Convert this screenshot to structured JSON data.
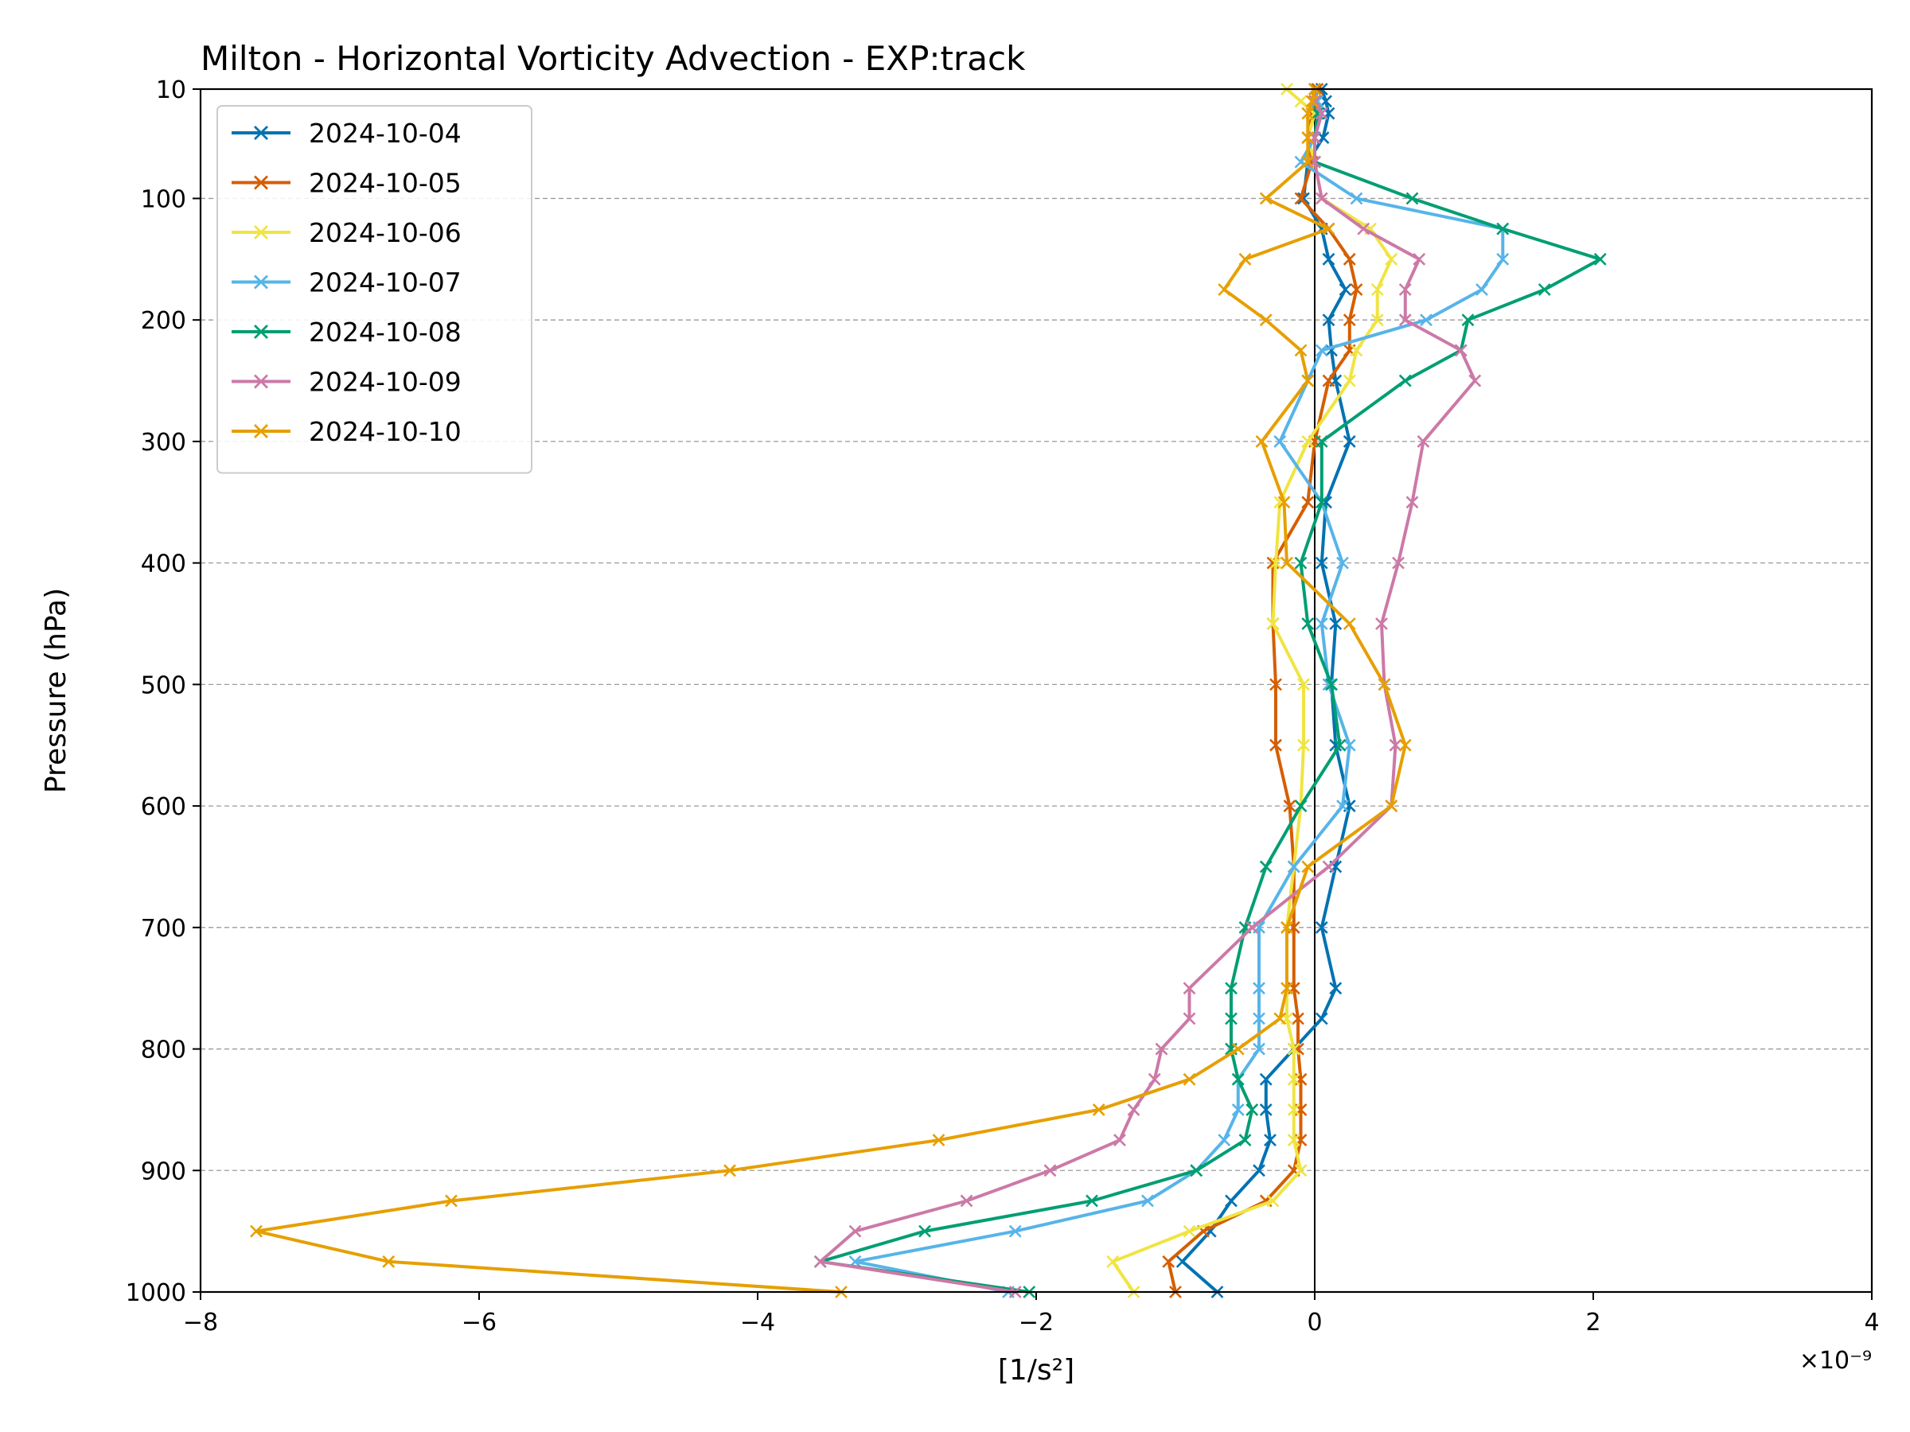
{
  "chart_data": {
    "type": "line",
    "title": "Milton - Horizontal Vorticity Advection - EXP:track",
    "xlabel": "[1/s²]",
    "ylabel": "Pressure (hPa)",
    "x_multiplier": "×10⁻⁹",
    "xlim": [
      -8,
      4
    ],
    "ylim": [
      1000,
      10
    ],
    "xticks": [
      -8,
      -6,
      -4,
      -2,
      0,
      2,
      4
    ],
    "xtick_labels": [
      "−8",
      "−6",
      "−4",
      "−2",
      "0",
      "2",
      "4"
    ],
    "yticks": [
      10,
      100,
      200,
      300,
      400,
      500,
      600,
      700,
      800,
      900,
      1000
    ],
    "ytick_labels": [
      "10",
      "100",
      "200",
      "300",
      "400",
      "500",
      "600",
      "700",
      "800",
      "900",
      "1000"
    ],
    "grid": "horizontal dashed",
    "legend_position": "top-left",
    "levels": [
      10,
      20,
      30,
      50,
      70,
      100,
      125,
      150,
      175,
      200,
      225,
      250,
      300,
      350,
      400,
      450,
      500,
      550,
      600,
      650,
      700,
      750,
      775,
      800,
      825,
      850,
      875,
      900,
      925,
      950,
      975,
      1000
    ],
    "series": [
      {
        "name": "2024-10-04",
        "color": "#0072b2",
        "values": [
          0.05,
          0.08,
          0.1,
          0.06,
          -0.05,
          -0.08,
          0.05,
          0.1,
          0.22,
          0.1,
          0.12,
          0.15,
          0.25,
          0.08,
          0.05,
          0.15,
          0.12,
          0.15,
          0.25,
          0.15,
          0.05,
          0.15,
          0.05,
          -0.15,
          -0.35,
          -0.35,
          -0.32,
          -0.4,
          -0.6,
          -0.75,
          -0.95,
          -0.7
        ]
      },
      {
        "name": "2024-10-05",
        "color": "#d55e00",
        "values": [
          0.02,
          0.0,
          -0.02,
          -0.05,
          -0.02,
          -0.1,
          0.1,
          0.25,
          0.3,
          0.25,
          0.25,
          0.1,
          0.0,
          -0.05,
          -0.3,
          -0.3,
          -0.28,
          -0.28,
          -0.18,
          -0.15,
          -0.15,
          -0.15,
          -0.12,
          -0.12,
          -0.1,
          -0.1,
          -0.1,
          -0.15,
          -0.35,
          -0.8,
          -1.05,
          -1.0
        ]
      },
      {
        "name": "2024-10-06",
        "color": "#f0e442",
        "values": [
          -0.2,
          -0.1,
          0.0,
          -0.05,
          0.0,
          0.05,
          0.4,
          0.55,
          0.45,
          0.45,
          0.3,
          0.25,
          -0.05,
          -0.25,
          -0.28,
          -0.3,
          -0.08,
          -0.08,
          -0.1,
          -0.15,
          -0.2,
          -0.2,
          -0.2,
          -0.15,
          -0.15,
          -0.15,
          -0.15,
          -0.1,
          -0.3,
          -0.9,
          -1.45,
          -1.3
        ]
      },
      {
        "name": "2024-10-07",
        "color": "#56b4e9",
        "values": [
          0.0,
          0.02,
          0.05,
          0.0,
          -0.1,
          0.3,
          1.35,
          1.35,
          1.2,
          0.8,
          0.05,
          -0.05,
          -0.25,
          0.05,
          0.2,
          0.05,
          0.1,
          0.25,
          0.2,
          -0.15,
          -0.4,
          -0.4,
          -0.4,
          -0.4,
          -0.55,
          -0.55,
          -0.65,
          -0.85,
          -1.2,
          -2.15,
          -3.3,
          -2.2
        ]
      },
      {
        "name": "2024-10-08",
        "color": "#009e73",
        "values": [
          0.0,
          0.0,
          0.02,
          0.0,
          0.0,
          0.7,
          1.35,
          2.05,
          1.65,
          1.1,
          1.05,
          0.65,
          0.05,
          0.05,
          -0.1,
          -0.05,
          0.12,
          0.18,
          -0.1,
          -0.35,
          -0.5,
          -0.6,
          -0.6,
          -0.6,
          -0.55,
          -0.45,
          -0.5,
          -0.85,
          -1.6,
          -2.8,
          -3.55,
          -2.05
        ]
      },
      {
        "name": "2024-10-09",
        "color": "#cc79a7",
        "values": [
          0.0,
          0.0,
          0.05,
          0.0,
          0.0,
          0.05,
          0.35,
          0.75,
          0.65,
          0.65,
          1.05,
          1.15,
          0.78,
          0.7,
          0.6,
          0.48,
          0.5,
          0.58,
          0.55,
          0.1,
          -0.45,
          -0.9,
          -0.9,
          -1.1,
          -1.15,
          -1.3,
          -1.4,
          -1.9,
          -2.5,
          -3.3,
          -3.55,
          -2.15
        ]
      },
      {
        "name": "2024-10-10",
        "color": "#e69f00",
        "values": [
          0.0,
          -0.02,
          -0.05,
          -0.05,
          -0.05,
          -0.35,
          0.1,
          -0.5,
          -0.65,
          -0.35,
          -0.1,
          -0.05,
          -0.38,
          -0.22,
          -0.2,
          0.25,
          0.5,
          0.65,
          0.55,
          -0.05,
          -0.2,
          -0.2,
          -0.25,
          -0.55,
          -0.9,
          -1.55,
          -2.7,
          -4.2,
          -6.2,
          -7.6,
          -6.65,
          -3.4
        ]
      }
    ]
  }
}
